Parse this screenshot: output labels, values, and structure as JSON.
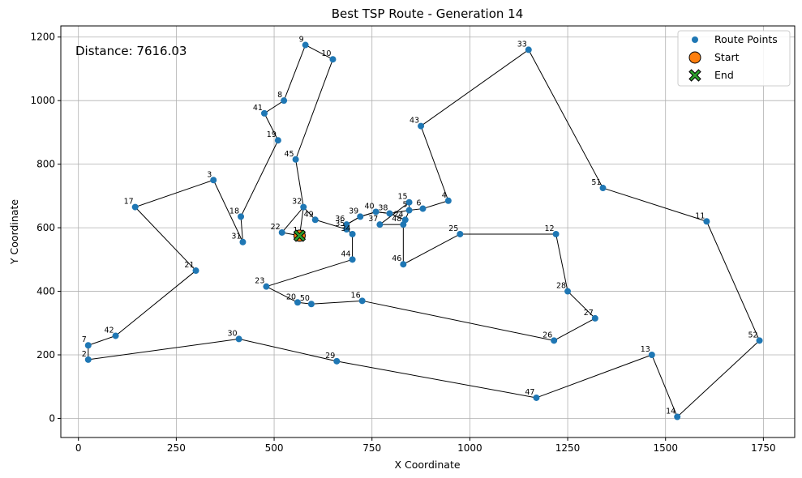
{
  "chart_data": {
    "type": "scatter",
    "title": "Best TSP Route - Generation 14",
    "xlabel": "X Coordinate",
    "ylabel": "Y Coordinate",
    "xlim": [
      -45,
      1830
    ],
    "ylim": [
      -60,
      1235
    ],
    "xticks": [
      0,
      250,
      500,
      750,
      1000,
      1250,
      1500,
      1750
    ],
    "yticks": [
      0,
      200,
      400,
      600,
      800,
      1000,
      1200
    ],
    "grid": true,
    "legend_position": "top-right",
    "annotation": "Distance: 7616.03",
    "legend": [
      "Route Points",
      "Start",
      "End"
    ],
    "colors": {
      "points": "#1f77b4",
      "start": "#ff7f0e",
      "end": "#2ca02c",
      "route": "#000000"
    },
    "points": [
      {
        "id": "1",
        "x": 565,
        "y": 575
      },
      {
        "id": "2",
        "x": 25,
        "y": 185
      },
      {
        "id": "3",
        "x": 345,
        "y": 750
      },
      {
        "id": "4",
        "x": 945,
        "y": 685
      },
      {
        "id": "5",
        "x": 845,
        "y": 655
      },
      {
        "id": "6",
        "x": 880,
        "y": 660
      },
      {
        "id": "7",
        "x": 25,
        "y": 230
      },
      {
        "id": "8",
        "x": 525,
        "y": 1000
      },
      {
        "id": "9",
        "x": 580,
        "y": 1175
      },
      {
        "id": "10",
        "x": 650,
        "y": 1130
      },
      {
        "id": "11",
        "x": 1605,
        "y": 620
      },
      {
        "id": "12",
        "x": 1220,
        "y": 580
      },
      {
        "id": "13",
        "x": 1465,
        "y": 200
      },
      {
        "id": "14",
        "x": 1530,
        "y": 5
      },
      {
        "id": "15",
        "x": 845,
        "y": 680
      },
      {
        "id": "16",
        "x": 725,
        "y": 370
      },
      {
        "id": "17",
        "x": 145,
        "y": 665
      },
      {
        "id": "18",
        "x": 415,
        "y": 635
      },
      {
        "id": "20",
        "x": 560,
        "y": 365
      },
      {
        "id": "21",
        "x": 300,
        "y": 465
      },
      {
        "id": "22",
        "x": 520,
        "y": 585
      },
      {
        "id": "23",
        "x": 480,
        "y": 415
      },
      {
        "id": "24",
        "x": 835,
        "y": 625
      },
      {
        "id": "25",
        "x": 975,
        "y": 580
      },
      {
        "id": "26",
        "x": 1215,
        "y": 245
      },
      {
        "id": "27",
        "x": 1320,
        "y": 315
      },
      {
        "id": "28",
        "x": 1250,
        "y": 400
      },
      {
        "id": "29",
        "x": 660,
        "y": 180
      },
      {
        "id": "30",
        "x": 410,
        "y": 250
      },
      {
        "id": "31",
        "x": 420,
        "y": 555
      },
      {
        "id": "32",
        "x": 575,
        "y": 665
      },
      {
        "id": "33",
        "x": 1150,
        "y": 1160
      },
      {
        "id": "34",
        "x": 700,
        "y": 580
      },
      {
        "id": "35",
        "x": 685,
        "y": 595
      },
      {
        "id": "36",
        "x": 685,
        "y": 610
      },
      {
        "id": "37",
        "x": 770,
        "y": 610
      },
      {
        "id": "38",
        "x": 795,
        "y": 645
      },
      {
        "id": "39",
        "x": 720,
        "y": 635
      },
      {
        "id": "40",
        "x": 760,
        "y": 650
      },
      {
        "id": "41",
        "x": 475,
        "y": 960
      },
      {
        "id": "42",
        "x": 95,
        "y": 260
      },
      {
        "id": "43",
        "x": 875,
        "y": 920
      },
      {
        "id": "44",
        "x": 700,
        "y": 500
      },
      {
        "id": "45",
        "x": 555,
        "y": 815
      },
      {
        "id": "46",
        "x": 830,
        "y": 485
      },
      {
        "id": "47",
        "x": 1170,
        "y": 65
      },
      {
        "id": "48",
        "x": 830,
        "y": 610
      },
      {
        "id": "49",
        "x": 605,
        "y": 625
      },
      {
        "id": "50",
        "x": 595,
        "y": 360
      },
      {
        "id": "51",
        "x": 1340,
        "y": 725
      },
      {
        "id": "52",
        "x": 1740,
        "y": 245
      },
      {
        "id": "19",
        "x": 510,
        "y": 875
      }
    ],
    "route": [
      "1",
      "22",
      "32",
      "45",
      "10",
      "9",
      "8",
      "41",
      "19",
      "18",
      "31",
      "3",
      "17",
      "21",
      "42",
      "7",
      "2",
      "30",
      "29",
      "47",
      "13",
      "14",
      "52",
      "11",
      "51",
      "33",
      "43",
      "4",
      "6",
      "5",
      "15",
      "37",
      "48",
      "24",
      "5",
      "38",
      "40",
      "39",
      "36",
      "35",
      "34",
      "44",
      "23",
      "20",
      "50",
      "16",
      "26",
      "27",
      "28",
      "12",
      "25",
      "46",
      "48",
      "24",
      "38",
      "40",
      "39",
      "36",
      "35",
      "49",
      "32",
      "1"
    ],
    "start": {
      "x": 565,
      "y": 575
    },
    "end": {
      "x": 565,
      "y": 575
    }
  }
}
